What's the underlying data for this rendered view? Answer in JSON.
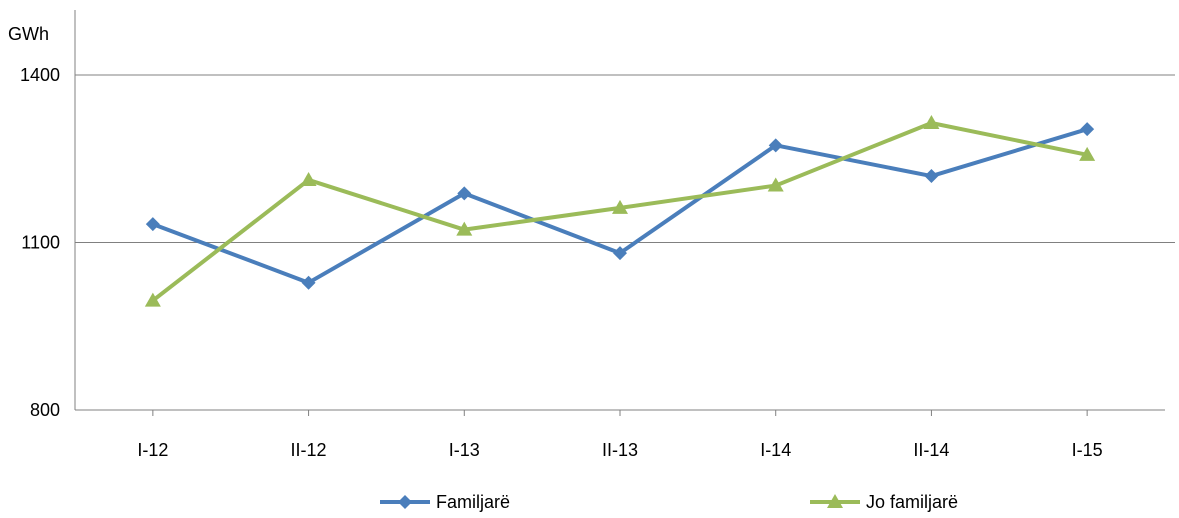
{
  "chart_data": {
    "type": "line",
    "title": "",
    "xlabel": "",
    "ylabel": "GWh",
    "categories": [
      "I-12",
      "II-12",
      "I-13",
      "II-13",
      "I-14",
      "II-14",
      "I-15"
    ],
    "ylim": [
      800,
      1400
    ],
    "yticks": [
      800,
      1100,
      1400
    ],
    "grid": true,
    "legend_position": "bottom",
    "series": [
      {
        "name": "Familjarë",
        "color": "#4a7ebb",
        "marker": "diamond",
        "values": [
          1133,
          1028,
          1188,
          1081,
          1274,
          1219,
          1303
        ]
      },
      {
        "name": "Jo familjarë",
        "color": "#9bbb59",
        "marker": "triangle",
        "values": [
          996,
          1212,
          1123,
          1162,
          1202,
          1314,
          1257
        ]
      }
    ]
  }
}
